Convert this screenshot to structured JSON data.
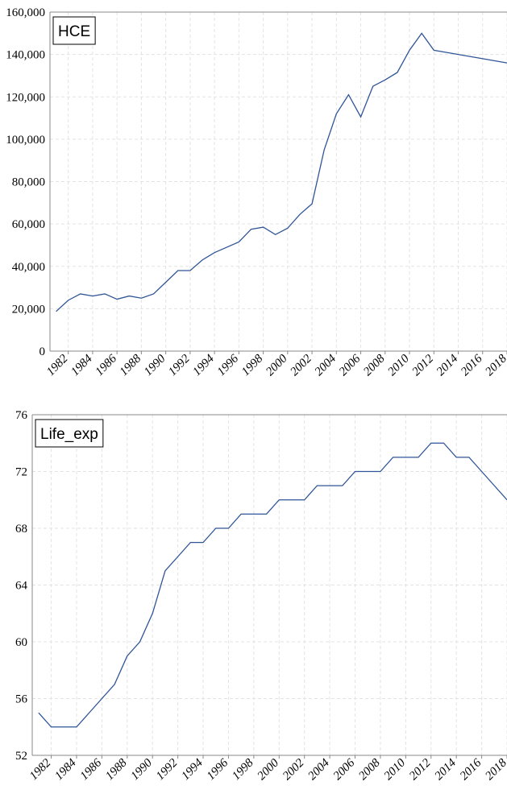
{
  "chart_data": [
    {
      "type": "line",
      "x": [
        1981,
        1982,
        1983,
        1984,
        1985,
        1986,
        1987,
        1988,
        1989,
        1990,
        1991,
        1992,
        1993,
        1994,
        1995,
        1996,
        1997,
        1998,
        1999,
        2000,
        2001,
        2002,
        2003,
        2004,
        2005,
        2006,
        2007,
        2008,
        2009,
        2010,
        2011,
        2012,
        2013,
        2014,
        2015,
        2016,
        2017,
        2018
      ],
      "series": [
        {
          "name": "HCE",
          "color": "#2f5597",
          "values": [
            18700,
            24000,
            27000,
            26000,
            27000,
            24500,
            26000,
            25000,
            27000,
            32500,
            38000,
            38000,
            43000,
            46500,
            49000,
            51500,
            57500,
            58500,
            55000,
            58000,
            64500,
            69500,
            95000,
            112000,
            121000,
            110500,
            125000,
            128000,
            131500,
            142000,
            150000,
            142000,
            141000,
            140000,
            139000,
            138000,
            137000,
            136000
          ]
        }
      ],
      "xlim": [
        1980.5,
        2018
      ],
      "xticks": [
        1982,
        1984,
        1986,
        1988,
        1990,
        1992,
        1994,
        1996,
        1998,
        2000,
        2002,
        2004,
        2006,
        2008,
        2010,
        2012,
        2014,
        2016,
        2018
      ],
      "ylim": [
        0,
        160000
      ],
      "yticks": [
        0,
        {
          "value": 20000,
          "label": "20,000"
        },
        {
          "value": 40000,
          "label": "40,000"
        },
        {
          "value": 60000,
          "label": "60,000"
        },
        {
          "value": 80000,
          "label": "80,000"
        },
        {
          "value": 100000,
          "label": "100,000"
        },
        {
          "value": 120000,
          "label": "120,000"
        },
        {
          "value": 140000,
          "label": "140,000"
        },
        {
          "value": 160000,
          "label": "160,000"
        }
      ],
      "grid": true,
      "legend": "upper left"
    },
    {
      "type": "line",
      "x": [
        1981,
        1982,
        1983,
        1984,
        1985,
        1986,
        1987,
        1988,
        1989,
        1990,
        1991,
        1992,
        1993,
        1994,
        1995,
        1996,
        1997,
        1998,
        1999,
        2000,
        2001,
        2002,
        2003,
        2004,
        2005,
        2006,
        2007,
        2008,
        2009,
        2010,
        2011,
        2012,
        2013,
        2014,
        2015,
        2016,
        2017,
        2018
      ],
      "series": [
        {
          "name": "Life_exp",
          "color": "#2f5597",
          "values": [
            55,
            54,
            54,
            54,
            55,
            56,
            57,
            59,
            60,
            62,
            65,
            66,
            67,
            67,
            68,
            68,
            69,
            69,
            69,
            70,
            70,
            70,
            71,
            71,
            71,
            72,
            72,
            72,
            73,
            73,
            73,
            74,
            74,
            73,
            73,
            72,
            71,
            70
          ]
        }
      ],
      "xlim": [
        1980.5,
        2018
      ],
      "xticks": [
        1982,
        1984,
        1986,
        1988,
        1990,
        1992,
        1994,
        1996,
        1998,
        2000,
        2002,
        2004,
        2006,
        2008,
        2010,
        2012,
        2014,
        2016,
        2018
      ],
      "ylim": [
        52,
        76
      ],
      "yticks": [
        52,
        56,
        60,
        64,
        68,
        72,
        76
      ],
      "grid": true,
      "legend": "upper left"
    }
  ]
}
